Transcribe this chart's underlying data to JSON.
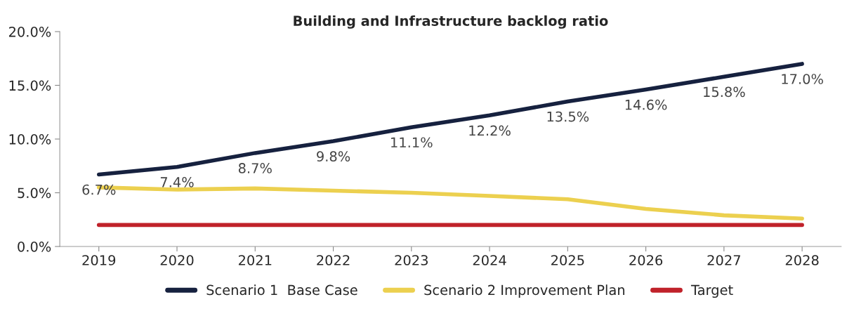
{
  "chart_data": {
    "type": "line",
    "title": "Building and Infrastructure backlog ratio",
    "categories": [
      "2019",
      "2020",
      "2021",
      "2022",
      "2023",
      "2024",
      "2025",
      "2026",
      "2027",
      "2028"
    ],
    "series": [
      {
        "name": "Scenario 1  Base Case",
        "color": "#16213f",
        "values": [
          6.7,
          7.4,
          8.7,
          9.8,
          11.1,
          12.2,
          13.5,
          14.6,
          15.8,
          17.0
        ],
        "value_labels": [
          "6.7%",
          "7.4%",
          "8.7%",
          "9.8%",
          "11.1%",
          "12.2%",
          "13.5%",
          "14.6%",
          "15.8%",
          "17.0%"
        ]
      },
      {
        "name": "Scenario 2 Improvement Plan",
        "color": "#ecd04f",
        "values": [
          5.5,
          5.3,
          5.4,
          5.2,
          5.0,
          4.7,
          4.4,
          3.5,
          2.9,
          2.6
        ]
      },
      {
        "name": "Target",
        "color": "#c0222a",
        "values": [
          2.0,
          2.0,
          2.0,
          2.0,
          2.0,
          2.0,
          2.0,
          2.0,
          2.0,
          2.0
        ]
      }
    ],
    "ylim": [
      0,
      20
    ],
    "yticks": [
      {
        "value": 0,
        "label": "0.0%"
      },
      {
        "value": 5,
        "label": "5.0%"
      },
      {
        "value": 10,
        "label": "10.0%"
      },
      {
        "value": 15,
        "label": "15.0%"
      },
      {
        "value": 20,
        "label": "20.0%"
      }
    ],
    "grid": false,
    "legend": "bottom",
    "marker": "none",
    "line_style": "solid"
  }
}
